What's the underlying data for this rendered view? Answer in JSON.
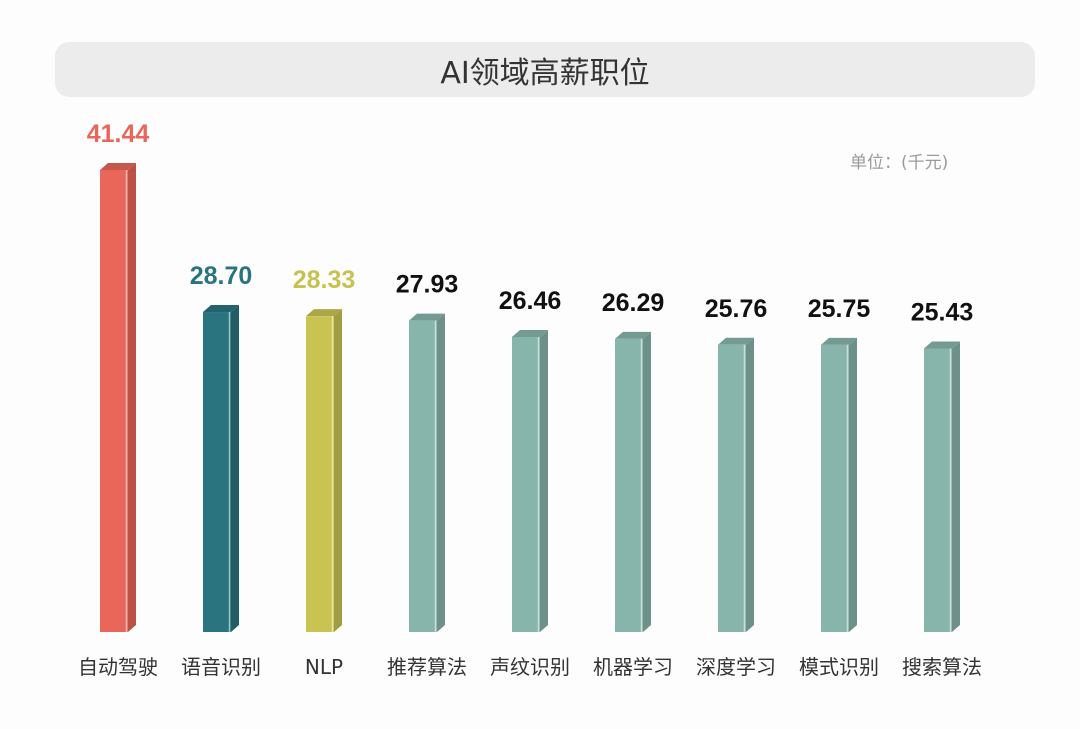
{
  "chart_data": {
    "type": "bar",
    "title": "AI领域高薪职位",
    "unit_label": "单位：(千元)",
    "categories": [
      "自动驾驶",
      "语音识别",
      "NLP",
      "推荐算法",
      "声纹识别",
      "机器学习",
      "深度学习",
      "模式识别",
      "搜索算法"
    ],
    "values": [
      41.44,
      28.7,
      28.33,
      27.93,
      26.46,
      26.29,
      25.76,
      25.75,
      25.43
    ],
    "value_labels": [
      "41.44",
      "28.70",
      "28.33",
      "27.93",
      "26.46",
      "26.29",
      "25.76",
      "25.75",
      "25.43"
    ],
    "bar_colors": [
      "#e8675a",
      "#2a7480",
      "#c9c452",
      "#88b5ab",
      "#88b5ab",
      "#88b5ab",
      "#88b5ab",
      "#88b5ab",
      "#88b5ab"
    ],
    "label_colors": [
      "#e8675a",
      "#2a7480",
      "#c7c24f",
      "#111111",
      "#111111",
      "#111111",
      "#111111",
      "#111111",
      "#111111"
    ],
    "ylim": [
      0,
      42
    ],
    "grid": false,
    "legend": "none",
    "style": "3d-columns"
  }
}
